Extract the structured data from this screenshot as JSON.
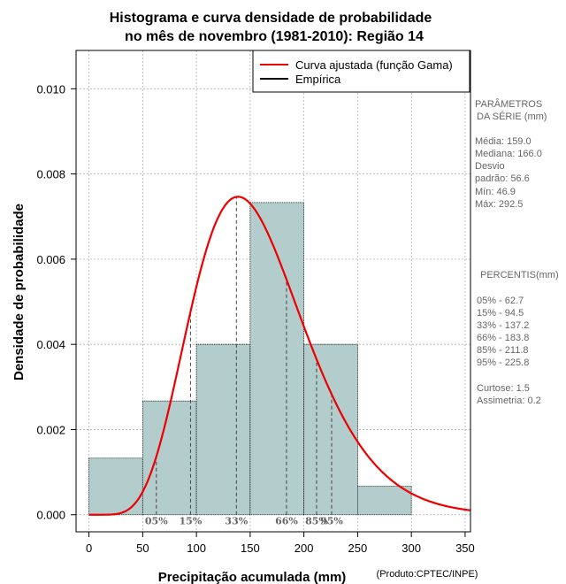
{
  "chart_data": {
    "type": "histogram",
    "title_line1": "Histograma e curva densidade de probabilidade",
    "title_line2": "no mês de novembro (1981-2010): Região 14",
    "xlabel": "Precipitação acumulada (mm)",
    "ylabel": "Densidade de probabilidade",
    "credit": "(Produto:CPTEC/INPE)",
    "xlim": [
      -12,
      355
    ],
    "ylim": [
      -0.0004,
      0.0109
    ],
    "grid": true,
    "x_ticks": [
      0,
      50,
      100,
      150,
      200,
      250,
      300,
      350
    ],
    "x_tick_labels": [
      "0",
      "50",
      "100",
      "150",
      "200",
      "250",
      "300",
      "350"
    ],
    "y_ticks": [
      0.0,
      0.002,
      0.004,
      0.006,
      0.008,
      0.01
    ],
    "y_tick_labels": [
      "0.000",
      "0.002",
      "0.004",
      "0.006",
      "0.008",
      "0.010"
    ],
    "bins": [
      {
        "x0": 0,
        "x1": 50,
        "density": 0.00133
      },
      {
        "x0": 50,
        "x1": 100,
        "density": 0.00267
      },
      {
        "x0": 100,
        "x1": 150,
        "density": 0.004
      },
      {
        "x0": 150,
        "x1": 200,
        "density": 0.00733
      },
      {
        "x0": 200,
        "x1": 250,
        "density": 0.004
      },
      {
        "x0": 250,
        "x1": 300,
        "density": 0.00067
      }
    ],
    "gamma_fit": {
      "shape": 7.9,
      "scale": 20.1
    },
    "bar_color": "#b3cccc",
    "curve_color": "#ee0000",
    "percentile_markers": [
      {
        "label": "05%",
        "value": 62.7
      },
      {
        "label": "15%",
        "value": 94.5
      },
      {
        "label": "33%",
        "value": 137.2
      },
      {
        "label": "66%",
        "value": 183.8
      },
      {
        "label": "85%",
        "value": 211.8
      },
      {
        "label": "95%",
        "value": 225.8
      }
    ],
    "legend": {
      "position": "top-right",
      "entries": [
        {
          "label": "Curva ajustada (função Gama)",
          "color": "#ee0000"
        },
        {
          "label": "Empírica",
          "color": "#000000"
        }
      ]
    }
  },
  "side_panel": {
    "params_title_line1": "PARÂMETROS",
    "params_title_line2": "DA SÉRIE (mm)",
    "stats": [
      "Média:  159.0",
      "Mediana:  166.0",
      "Desvio",
      "padrão:  56.6",
      "Mín:  46.9",
      "Máx:  292.5"
    ],
    "percentis_title": "PERCENTIS(mm)",
    "percentis": [
      "05% -  62.7",
      "15% -  94.5",
      "33% -  137.2",
      "66% -  183.8",
      "85% -  211.8",
      "95% -  225.8"
    ],
    "shape_stats": [
      "Curtose:  1.5",
      "Assimetria:  0.2"
    ]
  }
}
